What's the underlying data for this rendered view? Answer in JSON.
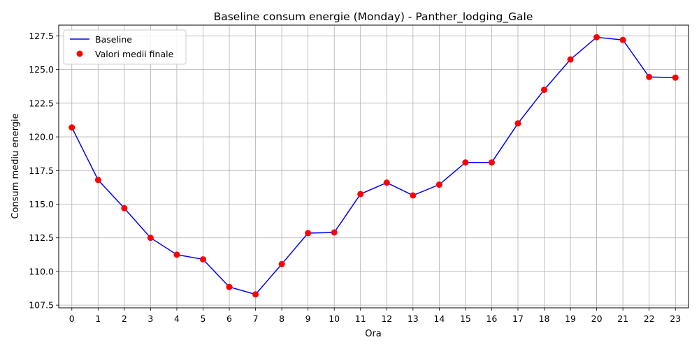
{
  "chart_data": {
    "type": "line",
    "title": "Baseline consum energie (Monday) - Panther_lodging_Gale",
    "xlabel": "Ora",
    "ylabel": "Consum mediu energie",
    "x": [
      0,
      1,
      2,
      3,
      4,
      5,
      6,
      7,
      8,
      9,
      10,
      11,
      12,
      13,
      14,
      15,
      16,
      17,
      18,
      19,
      20,
      21,
      22,
      23
    ],
    "xticks": [
      "0",
      "1",
      "2",
      "3",
      "4",
      "5",
      "6",
      "7",
      "8",
      "9",
      "10",
      "11",
      "12",
      "13",
      "14",
      "15",
      "16",
      "17",
      "18",
      "19",
      "20",
      "21",
      "22",
      "23"
    ],
    "yticks": [
      "107.5",
      "110.0",
      "112.5",
      "115.0",
      "117.5",
      "120.0",
      "122.5",
      "125.0",
      "127.5"
    ],
    "ylim": [
      107.3,
      128.3
    ],
    "xlim": [
      -0.5,
      23.5
    ],
    "grid": true,
    "legend_position": "upper-left",
    "series": [
      {
        "name": "Baseline",
        "kind": "line",
        "color": "#0000ff",
        "values": [
          120.7,
          116.8,
          114.7,
          112.5,
          111.25,
          110.9,
          108.85,
          108.3,
          110.55,
          112.85,
          112.9,
          115.75,
          116.6,
          115.65,
          116.45,
          118.1,
          118.1,
          121.0,
          123.5,
          125.75,
          127.4,
          127.2,
          124.45,
          124.4
        ]
      },
      {
        "name": "Valori medii finale",
        "kind": "scatter",
        "color": "#ff0000",
        "values": [
          120.7,
          116.8,
          114.7,
          112.5,
          111.25,
          110.9,
          108.85,
          108.3,
          110.55,
          112.85,
          112.9,
          115.75,
          116.6,
          115.65,
          116.45,
          118.1,
          118.1,
          121.0,
          123.5,
          125.75,
          127.4,
          127.2,
          124.45,
          124.4
        ]
      }
    ]
  }
}
